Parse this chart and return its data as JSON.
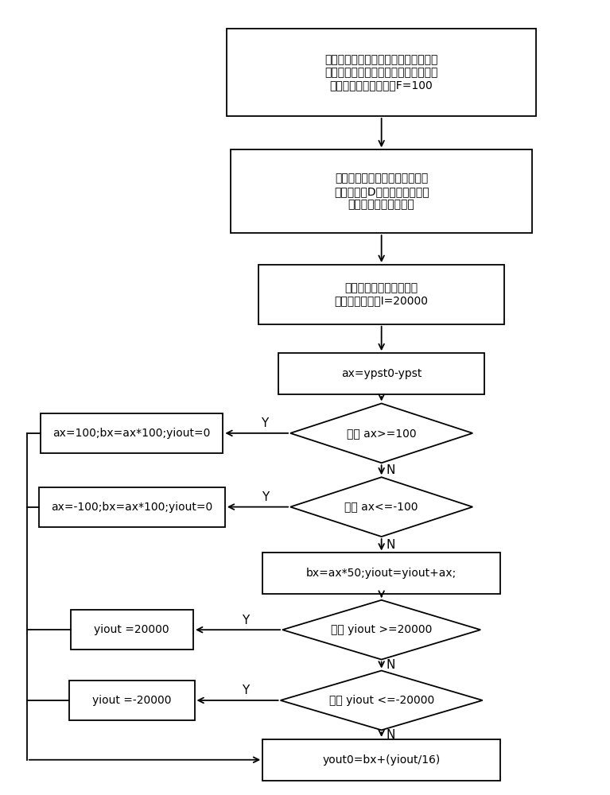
{
  "fig_width": 7.67,
  "fig_height": 10.0,
  "bg_color": "#ffffff",
  "box1_text": "读取位置传感器的位置信息，通过位置\n信息判断电机状态；计算位置传感器转\n动一个齿对应的码数为F=100",
  "box2_text": "电机未启动时，位置传感器的输\n出角度小于D，则电机的控制主\n令采用比例、积分输出",
  "box3_text": "对积分项进行限幅，设置\n积分限幅最大值I=20000",
  "box4_text": "ax=ypst0-ypst",
  "d1_text": "如果 ax>=100",
  "box5_text": "ax=100;bx=ax*100;yiout=0",
  "d2_text": "如果 ax<=-100",
  "box6_text": "ax=-100;bx=ax*100;yiout=0",
  "box7_text": "bx=ax*50;yiout=yiout+ax;",
  "d3_text": "如果 yiout >=20000",
  "box8_text": "yiout =20000",
  "d4_text": "如果 yiout <=-20000",
  "box9_text": "yiout =-20000",
  "box10_text": "yout0=bx+(yiout/16)",
  "label_Y": "Y",
  "label_N": "N",
  "lw": 1.3,
  "fontsize_cn": 10,
  "fontsize_code": 10
}
